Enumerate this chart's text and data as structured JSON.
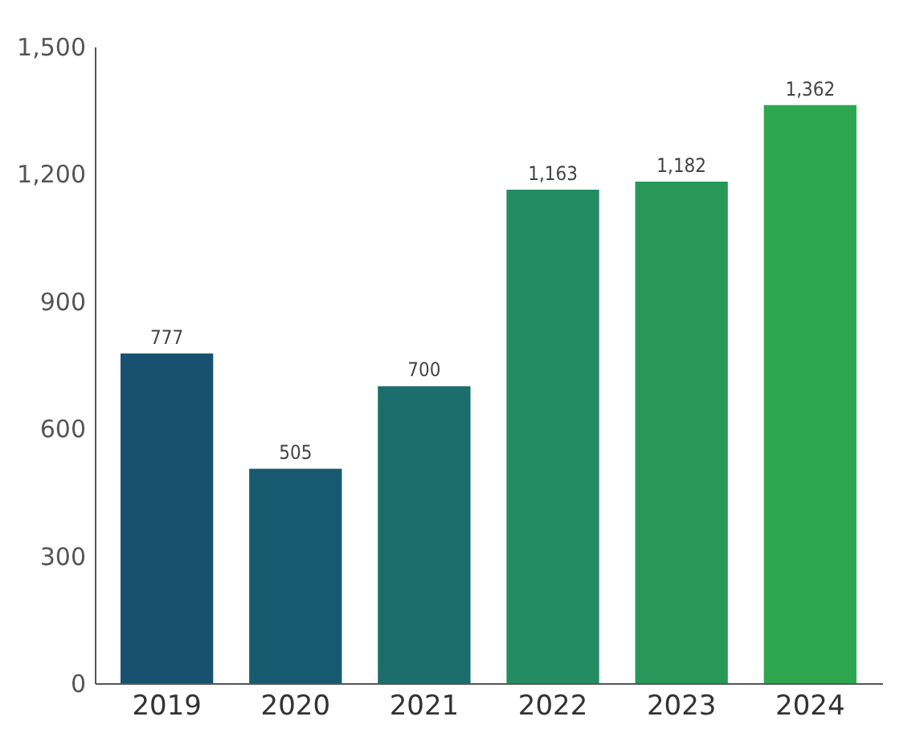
{
  "chart_data": {
    "type": "bar",
    "categories": [
      "2019",
      "2020",
      "2021",
      "2022",
      "2023",
      "2024"
    ],
    "values": [
      777,
      505,
      700,
      1163,
      1182,
      1362
    ],
    "value_labels": [
      "777",
      "505",
      "700",
      "1,163",
      "1,182",
      "1,362"
    ],
    "colors": [
      "#17516f",
      "#175a70",
      "#1b6e6c",
      "#248c63",
      "#289858",
      "#2ea64f"
    ],
    "ylim": [
      0,
      1500
    ],
    "yticks": [
      0,
      300,
      600,
      900,
      {
        "value": 1200,
        "label": "1,200"
      },
      {
        "value": 1500,
        "label": "1,500"
      }
    ],
    "grid": false
  }
}
